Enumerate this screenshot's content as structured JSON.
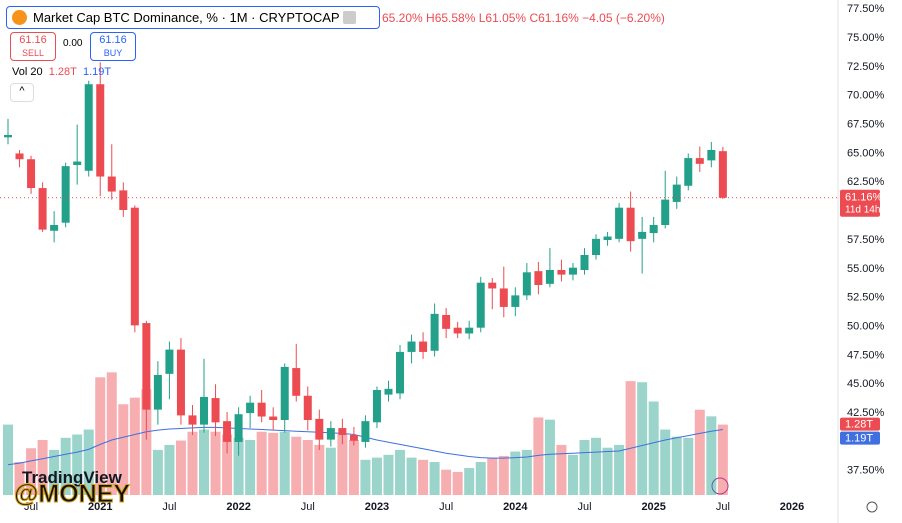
{
  "header": {
    "title": "Market Cap BTC Dominance, % · 1M · CRYPTOCAP",
    "ohlc": "65.20% H65.58% L61.05% C61.16% −4.05 (−6.20%)",
    "sell_price": "61.16",
    "sell_label": "SELL",
    "spread": "0.00",
    "buy_price": "61.16",
    "buy_label": "BUY",
    "volume_label": "Vol 20",
    "volume_value": "1.28T",
    "volume_ma_value": "1.19T",
    "price_tag": "61.16%",
    "countdown": "11d 14h",
    "volume_tag": "1.28T",
    "volume_ma_tag": "1.19T",
    "watermark": "TradingView",
    "handle": "@MONEY"
  },
  "chart_data": {
    "type": "candlestick",
    "categories": [
      null,
      null,
      "Jul",
      null,
      null,
      null,
      null,
      null,
      "2021",
      null,
      null,
      null,
      null,
      null,
      "Jul",
      null,
      null,
      null,
      null,
      null,
      "2022",
      null,
      null,
      null,
      null,
      null,
      "Jul",
      null,
      null,
      null,
      null,
      null,
      "2023",
      null,
      null,
      null,
      null,
      null,
      "Jul",
      null,
      null,
      null,
      null,
      null,
      "2024",
      null,
      null,
      null,
      null,
      null,
      "Jul",
      null,
      null,
      null,
      null,
      null,
      "2025",
      null,
      null,
      null,
      null,
      null,
      "Jul",
      null,
      null,
      null,
      null,
      null,
      "2026",
      null
    ],
    "open": [
      66.4,
      65.0,
      64.5,
      62.0,
      58.3,
      59.0,
      64.0,
      63.5,
      71.0,
      63.0,
      61.8,
      60.3,
      50.3,
      42.8,
      45.9,
      48.0,
      42.3,
      41.5,
      43.8,
      41.8,
      40.0,
      42.5,
      43.4,
      42.2,
      41.9,
      46.4,
      44.0,
      42.0,
      40.2,
      41.2,
      40.6,
      40.0,
      41.7,
      44.1,
      44.2,
      47.8,
      48.7,
      47.9,
      51.0,
      49.9,
      49.4,
      49.9,
      53.8,
      53.3,
      51.7,
      52.7,
      54.8,
      53.7,
      54.9,
      54.5,
      54.9,
      56.2,
      57.5,
      57.6,
      60.3,
      57.6,
      58.1,
      58.8,
      60.8,
      62.2,
      64.6,
      64.4,
      65.2,
      null,
      null,
      null,
      null,
      null,
      null,
      null
    ],
    "high": [
      68.0,
      65.3,
      64.8,
      62.5,
      60.0,
      64.2,
      67.5,
      71.3,
      72.9,
      65.8,
      62.5,
      60.5,
      50.5,
      47.0,
      48.7,
      49.0,
      43.2,
      47.2,
      45.0,
      42.6,
      43.0,
      44.0,
      44.5,
      43.0,
      46.8,
      48.5,
      44.8,
      42.8,
      41.8,
      42.0,
      41.3,
      42.3,
      44.8,
      45.3,
      48.4,
      49.3,
      49.5,
      52.0,
      51.6,
      50.4,
      50.5,
      54.3,
      54.2,
      55.2,
      53.4,
      55.5,
      55.6,
      56.8,
      55.8,
      55.5,
      56.8,
      58.0,
      58.2,
      60.7,
      61.7,
      59.5,
      59.5,
      63.5,
      63.0,
      65.0,
      65.6,
      66.0,
      65.58,
      null,
      null,
      null,
      null,
      null,
      null,
      null
    ],
    "low": [
      65.8,
      63.8,
      61.5,
      58.2,
      57.3,
      58.6,
      62.3,
      63.0,
      61.3,
      61.0,
      59.5,
      49.5,
      40.2,
      41.5,
      43.7,
      41.5,
      40.6,
      40.8,
      40.5,
      39.0,
      38.8,
      41.2,
      41.7,
      41.0,
      40.8,
      43.5,
      41.0,
      39.3,
      39.6,
      39.8,
      39.7,
      39.5,
      41.2,
      43.5,
      43.7,
      46.8,
      47.2,
      47.4,
      49.0,
      49.0,
      48.9,
      49.5,
      51.5,
      50.8,
      50.9,
      52.3,
      52.8,
      53.4,
      53.9,
      54.0,
      54.5,
      55.8,
      57.0,
      57.3,
      56.5,
      54.6,
      57.3,
      58.5,
      60.2,
      61.8,
      63.4,
      63.8,
      61.05,
      null,
      null,
      null,
      null,
      null,
      null,
      null
    ],
    "close": [
      66.6,
      64.5,
      62.0,
      58.4,
      58.8,
      63.9,
      64.3,
      71.0,
      63.0,
      61.7,
      60.1,
      50.1,
      42.8,
      45.8,
      48.0,
      42.3,
      41.5,
      43.9,
      41.7,
      40.0,
      42.4,
      43.4,
      42.2,
      41.9,
      46.5,
      44.0,
      41.9,
      40.2,
      41.2,
      40.6,
      40.1,
      41.8,
      44.5,
      44.6,
      47.8,
      48.7,
      47.8,
      51.1,
      49.8,
      49.4,
      49.9,
      53.8,
      53.3,
      51.7,
      52.7,
      54.7,
      53.6,
      54.9,
      54.5,
      55.1,
      56.2,
      57.6,
      57.8,
      60.3,
      57.4,
      58.2,
      58.8,
      61.0,
      62.3,
      64.6,
      64.1,
      65.3,
      61.16,
      null,
      null,
      null,
      null,
      null,
      null,
      null
    ],
    "volume": {
      "values": [
        1.28,
        0.6,
        0.85,
        1.0,
        0.82,
        1.04,
        1.1,
        1.19,
        2.14,
        2.23,
        1.65,
        1.77,
        1.92,
        0.82,
        0.91,
        0.99,
        1.15,
        1.19,
        1.15,
        1.1,
        1.04,
        1.0,
        1.15,
        1.13,
        1.15,
        1.06,
        1.0,
        0.91,
        0.86,
        1.1,
        1.0,
        0.64,
        0.68,
        0.73,
        0.82,
        0.68,
        0.64,
        0.6,
        0.46,
        0.42,
        0.49,
        0.6,
        0.68,
        0.71,
        0.79,
        0.82,
        1.41,
        1.37,
        0.91,
        0.73,
        1.0,
        1.04,
        0.86,
        0.91,
        2.07,
        2.05,
        1.7,
        1.19,
        1.06,
        1.04,
        1.55,
        1.43,
        1.28,
        null,
        null,
        null,
        null,
        null,
        null,
        null
      ],
      "ma": [
        0.55,
        0.58,
        0.62,
        0.66,
        0.7,
        0.74,
        0.78,
        0.83,
        0.92,
        1.0,
        1.05,
        1.1,
        1.15,
        1.18,
        1.2,
        1.21,
        1.22,
        1.23,
        1.23,
        1.22,
        1.21,
        1.2,
        1.19,
        1.18,
        1.17,
        1.16,
        1.15,
        1.14,
        1.13,
        1.12,
        1.1,
        1.05,
        1.0,
        0.96,
        0.92,
        0.88,
        0.84,
        0.8,
        0.76,
        0.73,
        0.7,
        0.68,
        0.67,
        0.67,
        0.68,
        0.69,
        0.72,
        0.74,
        0.75,
        0.76,
        0.77,
        0.78,
        0.79,
        0.8,
        0.85,
        0.9,
        0.95,
        1.0,
        1.04,
        1.08,
        1.12,
        1.16,
        1.19,
        null,
        null,
        null,
        null,
        null,
        null,
        null
      ],
      "ylim": [
        0,
        9
      ],
      "ma_color": "#3f6fe0"
    },
    "up_color": "#22a08a",
    "down_color": "#ec4b52",
    "ylim": [
      35.4,
      78.3
    ],
    "yticks": [
      {
        "value": 37.5,
        "label": "37.50%"
      },
      {
        "value": 42.5,
        "label": "42.50%"
      },
      {
        "value": 45,
        "label": "45.00%"
      },
      {
        "value": 47.5,
        "label": "47.50%"
      },
      {
        "value": 50,
        "label": "50.00%"
      },
      {
        "value": 52.5,
        "label": "52.50%"
      },
      {
        "value": 55,
        "label": "55.00%"
      },
      {
        "value": 57.5,
        "label": "57.50%"
      },
      {
        "value": 62.5,
        "label": "62.50%"
      },
      {
        "value": 65,
        "label": "65.00%"
      },
      {
        "value": 67.5,
        "label": "67.50%"
      },
      {
        "value": 70,
        "label": "70.00%"
      },
      {
        "value": 72.5,
        "label": "72.50%"
      },
      {
        "value": 75,
        "label": "75.00%"
      },
      {
        "value": 77.5,
        "label": "77.50%"
      }
    ],
    "grid": false
  }
}
